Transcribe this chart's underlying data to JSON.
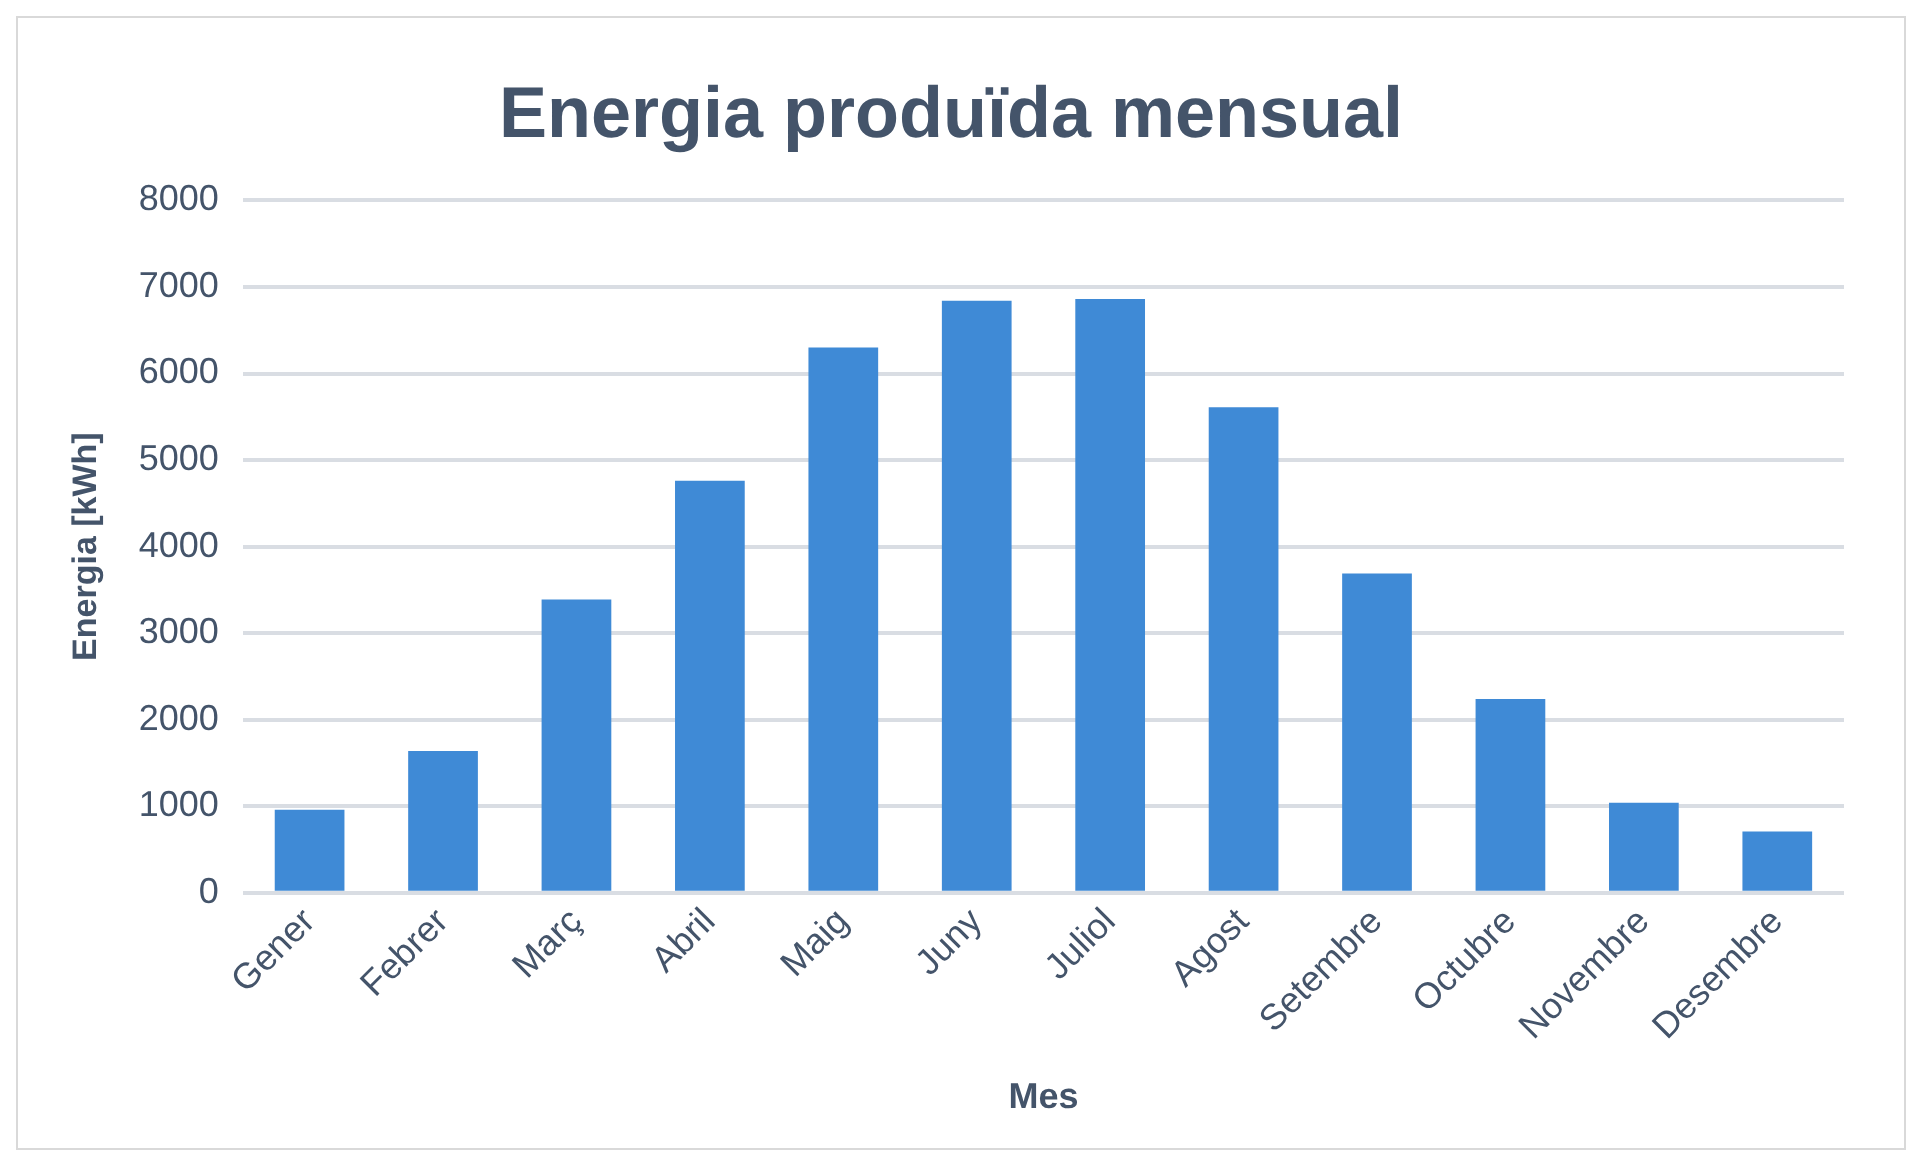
{
  "chart_data": {
    "type": "bar",
    "title": "Energia produïda mensual",
    "xlabel": "Mes",
    "ylabel": "Energia [kWh]",
    "categories": [
      "Gener",
      "Febrer",
      "Març",
      "Abril",
      "Maig",
      "Juny",
      "Juliol",
      "Agost",
      "Setembre",
      "Octubre",
      "Novembre",
      "Desembre"
    ],
    "values": [
      960,
      1640,
      3390,
      4760,
      6300,
      6840,
      6860,
      5610,
      3690,
      2240,
      1040,
      710
    ],
    "color": "#3f8ad6",
    "ylim": [
      0,
      8000
    ],
    "yticks": [
      0,
      1000,
      2000,
      3000,
      4000,
      5000,
      6000,
      7000,
      8000
    ],
    "grid": "y",
    "legend": false
  }
}
